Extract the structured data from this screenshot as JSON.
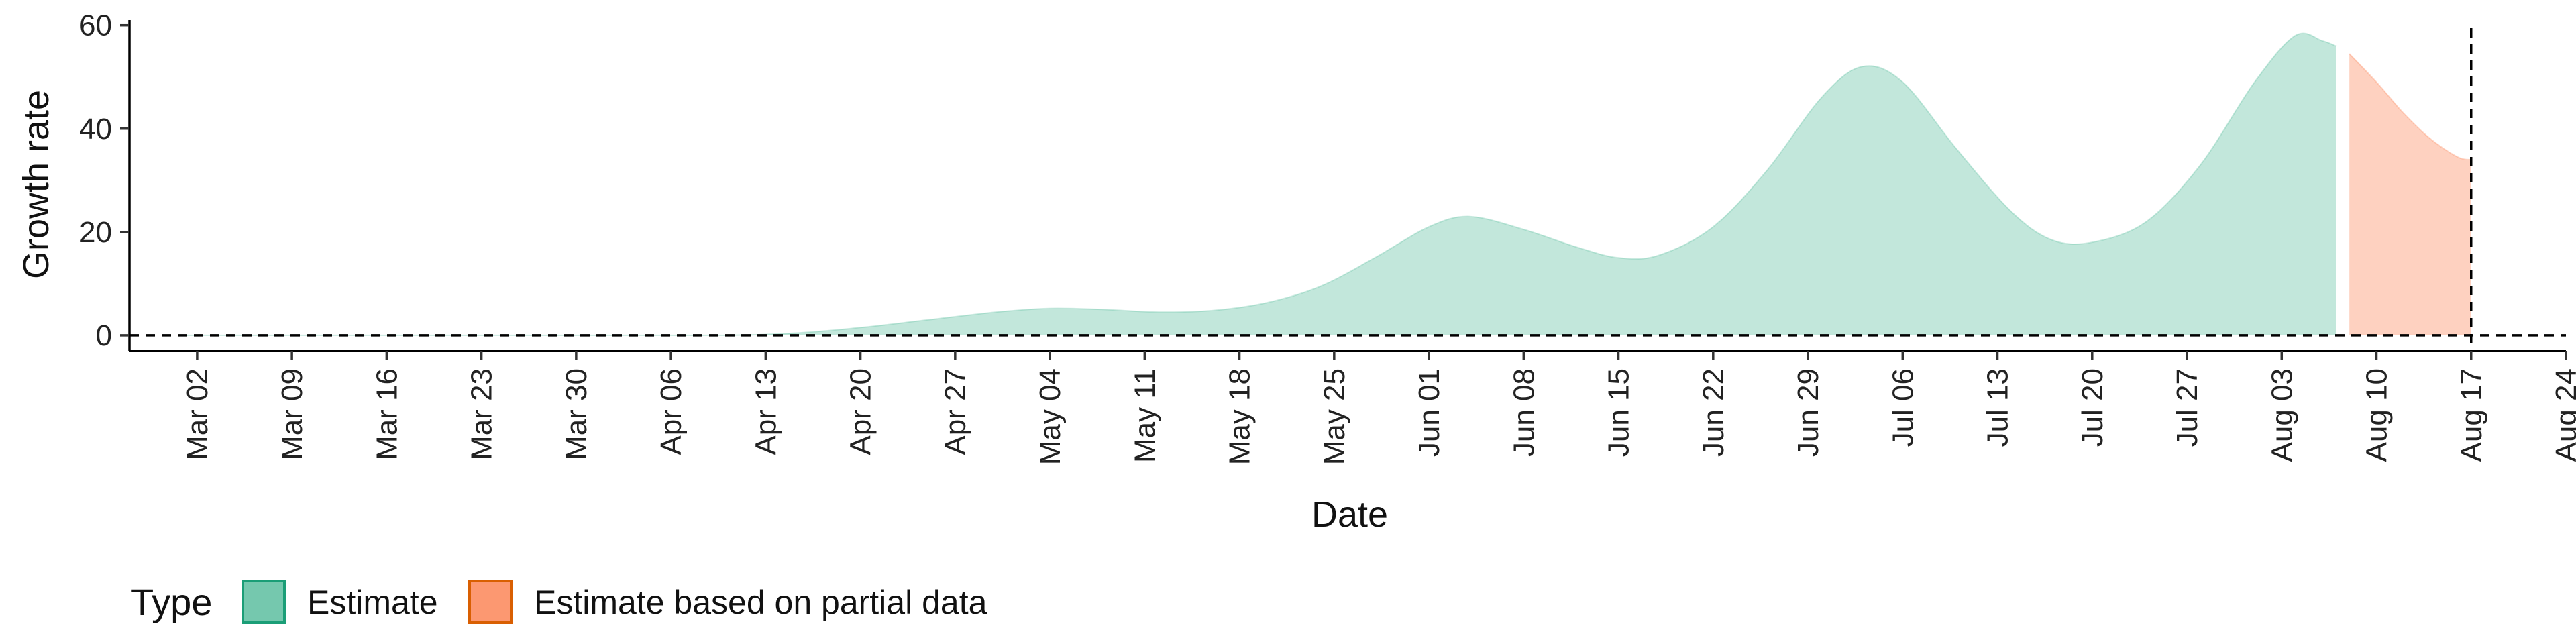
{
  "chart_data": {
    "type": "area",
    "xlabel": "Date",
    "ylabel": "Growth rate",
    "ylim": [
      -3,
      61
    ],
    "yticks": [
      0,
      20,
      40,
      60
    ],
    "xlim": [
      "2020-02-26",
      "2020-08-24"
    ],
    "xticks": [
      "2020-03-02",
      "2020-03-09",
      "2020-03-16",
      "2020-03-23",
      "2020-03-30",
      "2020-04-06",
      "2020-04-13",
      "2020-04-20",
      "2020-04-27",
      "2020-05-04",
      "2020-05-11",
      "2020-05-18",
      "2020-05-25",
      "2020-06-01",
      "2020-06-08",
      "2020-06-15",
      "2020-06-22",
      "2020-06-29",
      "2020-07-06",
      "2020-07-13",
      "2020-07-20",
      "2020-07-27",
      "2020-08-03",
      "2020-08-10",
      "2020-08-17",
      "2020-08-24"
    ],
    "xtick_labels": [
      "Mar 02",
      "Mar 09",
      "Mar 16",
      "Mar 23",
      "Mar 30",
      "Apr 06",
      "Apr 13",
      "Apr 20",
      "Apr 27",
      "May 04",
      "May 11",
      "May 18",
      "May 25",
      "Jun 01",
      "Jun 08",
      "Jun 15",
      "Jun 22",
      "Jun 29",
      "Jul 06",
      "Jul 13",
      "Jul 20",
      "Jul 27",
      "Aug 03",
      "Aug 10",
      "Aug 17",
      "Aug 24"
    ],
    "reference_lines": {
      "hline_y": 0,
      "vline_x": "2020-08-17",
      "style": "dashed"
    },
    "legend": {
      "title": "Type",
      "position": "bottom-left"
    },
    "series": [
      {
        "name": "Estimate",
        "color": "#66c2a5",
        "fill_opacity": 0.4,
        "points": [
          [
            "2020-03-01",
            0
          ],
          [
            "2020-03-15",
            0
          ],
          [
            "2020-04-01",
            0
          ],
          [
            "2020-04-10",
            0
          ],
          [
            "2020-04-15",
            0.4
          ],
          [
            "2020-04-20",
            1.5
          ],
          [
            "2020-04-25",
            3
          ],
          [
            "2020-04-30",
            4.5
          ],
          [
            "2020-05-04",
            5.2
          ],
          [
            "2020-05-08",
            5
          ],
          [
            "2020-05-12",
            4.5
          ],
          [
            "2020-05-16",
            4.8
          ],
          [
            "2020-05-20",
            6.3
          ],
          [
            "2020-05-24",
            9.5
          ],
          [
            "2020-05-28",
            15
          ],
          [
            "2020-06-01",
            21
          ],
          [
            "2020-06-04",
            23
          ],
          [
            "2020-06-08",
            20.5
          ],
          [
            "2020-06-12",
            17
          ],
          [
            "2020-06-15",
            15
          ],
          [
            "2020-06-18",
            15.5
          ],
          [
            "2020-06-22",
            21
          ],
          [
            "2020-06-26",
            32
          ],
          [
            "2020-06-30",
            46
          ],
          [
            "2020-07-03",
            52
          ],
          [
            "2020-07-06",
            49
          ],
          [
            "2020-07-10",
            36
          ],
          [
            "2020-07-14",
            24
          ],
          [
            "2020-07-17",
            18.5
          ],
          [
            "2020-07-20",
            18
          ],
          [
            "2020-07-24",
            22
          ],
          [
            "2020-07-28",
            33
          ],
          [
            "2020-08-01",
            49
          ],
          [
            "2020-08-04",
            58
          ],
          [
            "2020-08-06",
            57
          ],
          [
            "2020-08-07",
            56
          ]
        ]
      },
      {
        "name": "Estimate based on partial data",
        "color": "#fc8d62",
        "fill_opacity": 0.4,
        "points": [
          [
            "2020-08-08",
            54.5
          ],
          [
            "2020-08-10",
            49
          ],
          [
            "2020-08-12",
            43
          ],
          [
            "2020-08-14",
            38
          ],
          [
            "2020-08-16",
            34.5
          ],
          [
            "2020-08-17",
            34
          ]
        ]
      }
    ]
  }
}
